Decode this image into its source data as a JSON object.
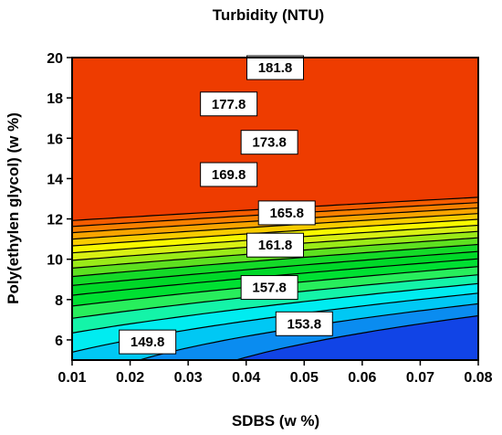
{
  "chart_data": {
    "type": "contour",
    "title": "Turbidity (NTU)",
    "xlabel": "SDBS (w %)",
    "ylabel": "Poly(ethylen glycol) (w %)",
    "xlim": [
      0.01,
      0.08
    ],
    "ylim": [
      5,
      20
    ],
    "x_ticks": [
      0.01,
      0.02,
      0.03,
      0.04,
      0.05,
      0.06,
      0.07,
      0.08
    ],
    "y_ticks": [
      6,
      8,
      10,
      12,
      14,
      16,
      18,
      20
    ],
    "x_tick_labels": [
      "0.01",
      "0.02",
      "0.03",
      "0.04",
      "0.05",
      "0.06",
      "0.07",
      "0.08"
    ],
    "y_tick_labels": [
      "6",
      "8",
      "10",
      "12",
      "14",
      "16",
      "18",
      "20"
    ],
    "grid": false,
    "contour_levels": [
      {
        "value": 149.8,
        "label": "149.8",
        "at": [
          0.023,
          5.9
        ]
      },
      {
        "value": 151.8,
        "label": "",
        "at": null
      },
      {
        "value": 153.8,
        "label": "153.8",
        "at": [
          0.05,
          6.8
        ]
      },
      {
        "value": 155.8,
        "label": "",
        "at": null
      },
      {
        "value": 157.8,
        "label": "157.8",
        "at": [
          0.044,
          8.6
        ]
      },
      {
        "value": 159.8,
        "label": "",
        "at": null
      },
      {
        "value": 161.8,
        "label": "161.8",
        "at": [
          0.045,
          10.7
        ]
      },
      {
        "value": 163.8,
        "label": "",
        "at": null
      },
      {
        "value": 165.8,
        "label": "165.8",
        "at": [
          0.047,
          12.3
        ]
      },
      {
        "value": 167.8,
        "label": "",
        "at": null
      },
      {
        "value": 169.8,
        "label": "169.8",
        "at": [
          0.037,
          14.2
        ]
      },
      {
        "value": 171.8,
        "label": "",
        "at": null
      },
      {
        "value": 173.8,
        "label": "173.8",
        "at": [
          0.044,
          15.8
        ]
      },
      {
        "value": 175.8,
        "label": "",
        "at": null
      },
      {
        "value": 177.8,
        "label": "177.8",
        "at": [
          0.037,
          17.7
        ]
      },
      {
        "value": 179.8,
        "label": "",
        "at": null
      },
      {
        "value": 181.8,
        "label": "181.8",
        "at": [
          0.045,
          19.5
        ]
      }
    ],
    "band_colors": [
      "#1144e6",
      "#0a8cf0",
      "#00c8f4",
      "#00ecf0",
      "#14f4a8",
      "#28ee5c",
      "#00e032",
      "#00d828",
      "#14da28",
      "#5ee020",
      "#9aea18",
      "#d8f014",
      "#f8f800",
      "#f8cc00",
      "#f8a400",
      "#f88000",
      "#f45c00",
      "#ee3c00"
    ]
  }
}
